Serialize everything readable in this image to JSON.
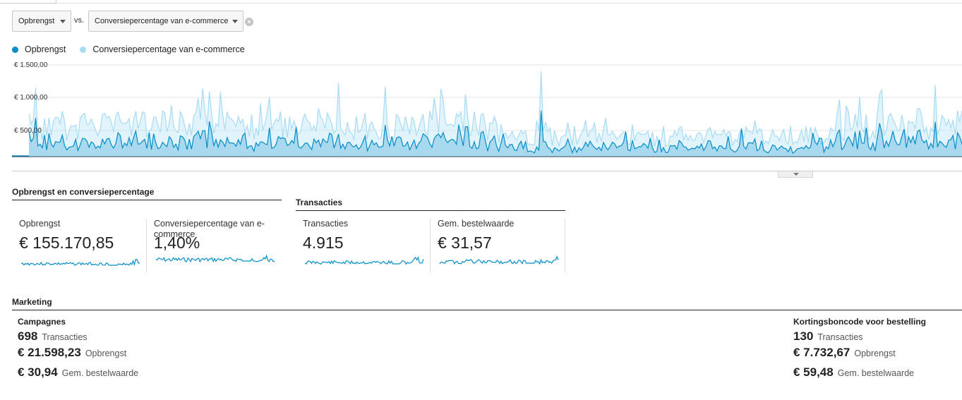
{
  "selectors": {
    "metric1": "Opbrengst",
    "vs": "vs.",
    "metric2": "Conversiepercentage van e-commerce"
  },
  "legend": [
    {
      "label": "Opbrengst",
      "color": "#058dc7"
    },
    {
      "label": "Conversiepercentage van e-commerce",
      "color": "#a8dcf4"
    }
  ],
  "chart_data": {
    "type": "area",
    "y_ticks": [
      "€ 1.500,00",
      "€ 1.000,00",
      "€ 500,00"
    ],
    "ylim": [
      0,
      1500
    ],
    "series": [
      {
        "name": "Opbrengst",
        "color": "#058dc7"
      },
      {
        "name": "Conversiepercentage van e-commerce",
        "color": "#a8dcf4"
      }
    ]
  },
  "section_revenue": {
    "title": "Opbrengst en conversiepercentage",
    "metrics": [
      {
        "label": "Opbrengst",
        "value": "€ 155.170,85"
      },
      {
        "label": "Conversiepercentage van e-commerce",
        "value": "1,40%"
      }
    ]
  },
  "section_transactions": {
    "title": "Transacties",
    "metrics": [
      {
        "label": "Transacties",
        "value": "4.915"
      },
      {
        "label": "Gem. bestelwaarde",
        "value": "€ 31,57"
      }
    ]
  },
  "marketing": {
    "title": "Marketing",
    "campaigns": {
      "title": "Campagnes",
      "rows": [
        {
          "value": "698",
          "label": "Transacties"
        },
        {
          "value": "€ 21.598,23",
          "label": "Opbrengst"
        },
        {
          "value": "€ 30,94",
          "label": "Gem. bestelwaarde"
        }
      ]
    },
    "coupons": {
      "title": "Kortingsboncode voor bestelling",
      "rows": [
        {
          "value": "130",
          "label": "Transacties"
        },
        {
          "value": "€ 7.732,67",
          "label": "Opbrengst"
        },
        {
          "value": "€ 59,48",
          "label": "Gem. bestelwaarde"
        }
      ]
    }
  }
}
